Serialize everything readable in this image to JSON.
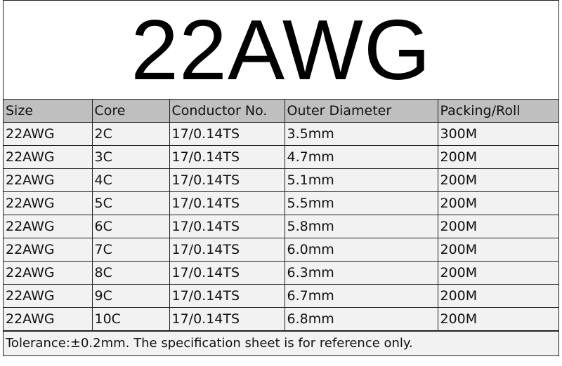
{
  "title": "22AWG",
  "headers": [
    "Size",
    "Core",
    "Conductor No.",
    "Outer Diameter",
    "Packing/Roll"
  ],
  "rows": [
    [
      "22AWG",
      "2C",
      "17/0.14TS",
      "3.5mm",
      "300M"
    ],
    [
      "22AWG",
      "3C",
      "17/0.14TS",
      "4.7mm",
      "200M"
    ],
    [
      "22AWG",
      "4C",
      "17/0.14TS",
      "5.1mm",
      "200M"
    ],
    [
      "22AWG",
      "5C",
      "17/0.14TS",
      "5.5mm",
      "200M"
    ],
    [
      "22AWG",
      "6C",
      "17/0.14TS",
      "5.8mm",
      "200M"
    ],
    [
      "22AWG",
      "7C",
      "17/0.14TS",
      "6.0mm",
      "200M"
    ],
    [
      "22AWG",
      "8C",
      "17/0.14TS",
      "6.3mm",
      "200M"
    ],
    [
      "22AWG",
      "9C",
      "17/0.14TS",
      "6.7mm",
      "200M"
    ],
    [
      "22AWG",
      "10C",
      "17/0.14TS",
      "6.8mm",
      "200M"
    ]
  ],
  "footer": "Tolerance:±0.2mm. The specification sheet is for reference only.",
  "colors": {
    "header_bg": "#bfbfbf",
    "row_bg": "#f2f2f2",
    "border": "#222222"
  }
}
